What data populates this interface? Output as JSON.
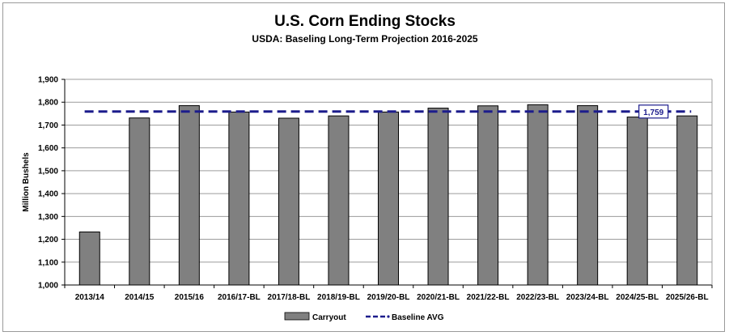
{
  "chart_data": {
    "type": "bar",
    "title": "U.S. Corn Ending Stocks",
    "subtitle": "USDA:  Baseling Long-Term Projection 2016-2025",
    "ylabel": "Million Bushels",
    "xlabel": "",
    "ylim": [
      1000,
      1900
    ],
    "yticks": [
      1000,
      1100,
      1200,
      1300,
      1400,
      1500,
      1600,
      1700,
      1800,
      1900
    ],
    "ytick_labels": [
      "1,000",
      "1,100",
      "1,200",
      "1,300",
      "1,400",
      "1,500",
      "1,600",
      "1,700",
      "1,800",
      "1,900"
    ],
    "grid": true,
    "categories": [
      "2013/14",
      "2014/15",
      "2015/16",
      "2016/17-BL",
      "2017/18-BL",
      "2018/19-BL",
      "2019/20-BL",
      "2020/21-BL",
      "2021/22-BL",
      "2022/23-BL",
      "2023/24-BL",
      "2024/25-BL",
      "2025/26-BL"
    ],
    "series": [
      {
        "name": "Carryout",
        "type": "bar",
        "color": "#808080",
        "values": [
          1232,
          1731,
          1785,
          1757,
          1730,
          1740,
          1757,
          1774,
          1784,
          1789,
          1785,
          1735,
          1740
        ]
      },
      {
        "name": "Baseline AVG",
        "type": "line",
        "style": "dashed",
        "color": "#1c1c8c",
        "value": 1759,
        "label": "1,759"
      }
    ],
    "legend": {
      "position": "bottom"
    }
  }
}
